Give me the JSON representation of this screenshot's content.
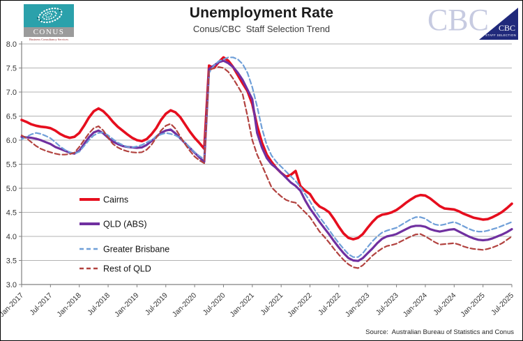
{
  "header": {
    "title": "Unemployment Rate",
    "subtitle": "Conus/CBC  Staff Selection Trend",
    "conus_logo": {
      "name": "CONUS",
      "tagline": "Business Consultancy Services"
    },
    "cbc_logo": {
      "text": "CBC",
      "badge_text": "CBC",
      "badge_sub": "STAFF SELECTION"
    }
  },
  "footer": {
    "source": "Source:  Australian Bureau of Statistics and Conus"
  },
  "chart_data": {
    "type": "line",
    "title": "Unemployment Rate",
    "subtitle": "Conus/CBC Staff Selection Trend",
    "ylabel": "",
    "xlabel": "",
    "ylim": [
      3.0,
      8.0
    ],
    "ytick_step": 0.5,
    "ytick_labels": [
      "8.0",
      "7.5",
      "7.0",
      "6.5",
      "6.0",
      "5.5",
      "5.0",
      "4.5",
      "4.0",
      "3.5",
      "3.0"
    ],
    "grid": "horizontal",
    "legend_position": "inside-left",
    "x_frequency": "monthly",
    "x_start": "Jan-2017",
    "x_end": "Jul-2025",
    "xtick_every_months": 6,
    "xtick_labels": [
      "Jan-2017",
      "Jul-2017",
      "Jan-2018",
      "Jul-2018",
      "Jan-2019",
      "Jul-2019",
      "Jan-2020",
      "Jul-2020",
      "Jan-2021",
      "Jul-2021",
      "Jan-2022",
      "Jul-2022",
      "Jan-2023",
      "Jul-2023",
      "Jan-2024",
      "Jul-2024",
      "Jan-2025",
      "Jul-2025"
    ],
    "series": [
      {
        "name": "Cairns",
        "color": "#e60e1e",
        "style": "solid",
        "width": 3.6,
        "values": [
          6.42,
          6.38,
          6.33,
          6.3,
          6.28,
          6.27,
          6.25,
          6.2,
          6.13,
          6.08,
          6.05,
          6.07,
          6.15,
          6.3,
          6.47,
          6.6,
          6.66,
          6.6,
          6.5,
          6.38,
          6.28,
          6.2,
          6.12,
          6.05,
          6.0,
          5.98,
          6.02,
          6.12,
          6.25,
          6.42,
          6.55,
          6.62,
          6.58,
          6.48,
          6.33,
          6.18,
          6.05,
          5.94,
          5.82,
          7.55,
          7.5,
          7.62,
          7.72,
          7.65,
          7.52,
          7.35,
          7.18,
          7.02,
          6.75,
          6.3,
          5.95,
          5.7,
          5.55,
          5.42,
          5.32,
          5.24,
          5.28,
          5.36,
          5.05,
          4.95,
          4.88,
          4.72,
          4.62,
          4.57,
          4.5,
          4.36,
          4.2,
          4.06,
          3.97,
          3.94,
          3.97,
          4.05,
          4.18,
          4.3,
          4.4,
          4.45,
          4.47,
          4.5,
          4.55,
          4.62,
          4.7,
          4.77,
          4.83,
          4.86,
          4.85,
          4.79,
          4.71,
          4.63,
          4.58,
          4.57,
          4.56,
          4.52,
          4.47,
          4.43,
          4.39,
          4.37,
          4.35,
          4.36,
          4.4,
          4.45,
          4.51,
          4.59,
          4.68
        ]
      },
      {
        "name": "QLD (ABS)",
        "color": "#7030a0",
        "style": "solid",
        "width": 3.2,
        "values": [
          6.07,
          6.06,
          6.05,
          6.03,
          6.0,
          5.96,
          5.92,
          5.86,
          5.82,
          5.78,
          5.74,
          5.72,
          5.78,
          5.92,
          6.06,
          6.16,
          6.2,
          6.14,
          6.05,
          5.97,
          5.92,
          5.88,
          5.86,
          5.85,
          5.84,
          5.85,
          5.9,
          5.98,
          6.07,
          6.15,
          6.2,
          6.22,
          6.14,
          6.04,
          5.94,
          5.84,
          5.74,
          5.64,
          5.55,
          7.48,
          7.55,
          7.62,
          7.65,
          7.6,
          7.52,
          7.4,
          7.25,
          7.05,
          6.85,
          6.15,
          5.85,
          5.63,
          5.5,
          5.42,
          5.32,
          5.22,
          5.12,
          5.05,
          4.95,
          4.75,
          4.58,
          4.44,
          4.3,
          4.17,
          4.04,
          3.9,
          3.77,
          3.65,
          3.55,
          3.5,
          3.49,
          3.55,
          3.65,
          3.75,
          3.86,
          3.95,
          4.0,
          4.02,
          4.05,
          4.1,
          4.15,
          4.2,
          4.22,
          4.22,
          4.2,
          4.15,
          4.12,
          4.1,
          4.12,
          4.14,
          4.15,
          4.1,
          4.05,
          4.0,
          3.96,
          3.93,
          3.92,
          3.93,
          3.96,
          4.0,
          4.04,
          4.09,
          4.15
        ]
      },
      {
        "name": "Greater Brisbane",
        "color": "#6f9fd8",
        "style": "dashed",
        "width": 2.2,
        "values": [
          6.02,
          6.07,
          6.12,
          6.15,
          6.13,
          6.09,
          6.04,
          5.96,
          5.87,
          5.8,
          5.75,
          5.72,
          5.76,
          5.88,
          6.0,
          6.1,
          6.15,
          6.16,
          6.1,
          6.02,
          5.95,
          5.9,
          5.86,
          5.85,
          5.87,
          5.9,
          5.95,
          6.0,
          6.07,
          6.12,
          6.15,
          6.13,
          6.1,
          6.04,
          5.95,
          5.85,
          5.75,
          5.67,
          5.6,
          7.4,
          7.55,
          7.64,
          7.68,
          7.72,
          7.72,
          7.68,
          7.58,
          7.4,
          7.1,
          6.7,
          6.25,
          5.9,
          5.68,
          5.55,
          5.45,
          5.35,
          5.25,
          5.15,
          5.03,
          4.88,
          4.73,
          4.55,
          4.4,
          4.27,
          4.13,
          3.99,
          3.86,
          3.74,
          3.63,
          3.57,
          3.57,
          3.65,
          3.78,
          3.9,
          4.0,
          4.08,
          4.12,
          4.15,
          4.18,
          4.24,
          4.3,
          4.36,
          4.4,
          4.4,
          4.37,
          4.3,
          4.25,
          4.23,
          4.25,
          4.28,
          4.3,
          4.26,
          4.21,
          4.16,
          4.12,
          4.1,
          4.1,
          4.12,
          4.15,
          4.18,
          4.22,
          4.26,
          4.3
        ]
      },
      {
        "name": "Rest of QLD",
        "color": "#b2423f",
        "style": "dashed",
        "width": 2.2,
        "values": [
          6.1,
          6.04,
          5.96,
          5.88,
          5.82,
          5.78,
          5.75,
          5.72,
          5.7,
          5.7,
          5.71,
          5.74,
          5.86,
          6.0,
          6.14,
          6.25,
          6.29,
          6.2,
          6.05,
          5.92,
          5.85,
          5.8,
          5.77,
          5.75,
          5.74,
          5.75,
          5.8,
          5.9,
          6.05,
          6.2,
          6.3,
          6.34,
          6.24,
          6.08,
          5.92,
          5.78,
          5.66,
          5.58,
          5.52,
          7.45,
          7.5,
          7.52,
          7.5,
          7.42,
          7.28,
          7.12,
          6.95,
          6.5,
          6.0,
          5.7,
          5.48,
          5.25,
          5.02,
          4.92,
          4.83,
          4.76,
          4.72,
          4.7,
          4.6,
          4.5,
          4.4,
          4.25,
          4.1,
          3.99,
          3.87,
          3.74,
          3.62,
          3.51,
          3.42,
          3.36,
          3.34,
          3.4,
          3.5,
          3.6,
          3.68,
          3.75,
          3.8,
          3.82,
          3.85,
          3.9,
          3.95,
          4.0,
          4.04,
          4.05,
          4.0,
          3.94,
          3.88,
          3.83,
          3.84,
          3.85,
          3.86,
          3.83,
          3.79,
          3.76,
          3.74,
          3.73,
          3.72,
          3.74,
          3.77,
          3.81,
          3.86,
          3.93,
          4.0
        ]
      }
    ]
  }
}
